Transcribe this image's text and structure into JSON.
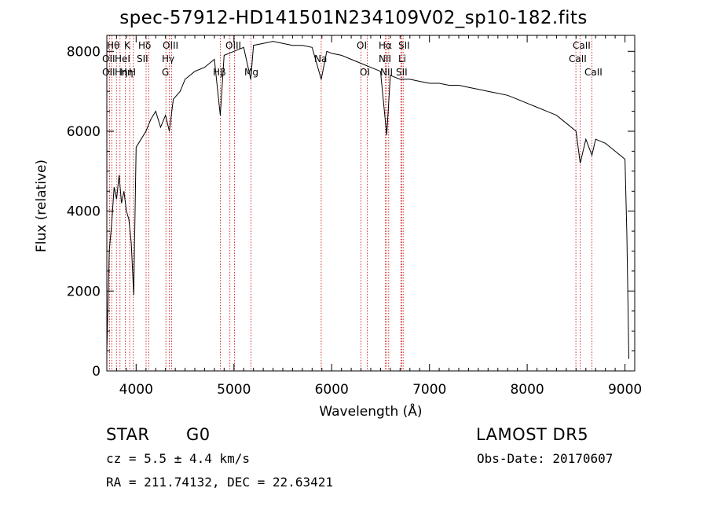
{
  "chart_data": {
    "type": "line",
    "title": "spec-57912-HD141501N234109V02_sp10-182.fits",
    "xlabel": "Wavelength (Å)",
    "ylabel": "Flux (relative)",
    "xlim": [
      3700,
      9100
    ],
    "ylim": [
      0,
      8400
    ],
    "xticks": [
      4000,
      5000,
      6000,
      7000,
      8000,
      9000
    ],
    "yticks": [
      0,
      2000,
      4000,
      6000,
      8000
    ],
    "series": [
      {
        "x": [
          3700,
          3725,
          3750,
          3775,
          3800,
          3825,
          3850,
          3875,
          3900,
          3925,
          3950,
          3975,
          4000,
          4050,
          4100,
          4150,
          4200,
          4250,
          4300,
          4340,
          4380,
          4450,
          4500,
          4600,
          4700,
          4800,
          4860,
          4900,
          5000,
          5100,
          5172,
          5200,
          5300,
          5400,
          5500,
          5600,
          5700,
          5800,
          5893,
          5950,
          6000,
          6100,
          6200,
          6300,
          6400,
          6500,
          6563,
          6600,
          6700,
          6800,
          6900,
          7000,
          7100,
          7200,
          7300,
          7400,
          7500,
          7600,
          7700,
          7800,
          7900,
          8000,
          8100,
          8200,
          8300,
          8400,
          8500,
          8542,
          8600,
          8662,
          8700,
          8800,
          8900,
          9000,
          9020,
          9040
        ],
        "y": [
          500,
          3000,
          3700,
          4600,
          4300,
          4900,
          4200,
          4500,
          4000,
          3800,
          3200,
          1900,
          5600,
          5800,
          6000,
          6300,
          6500,
          6100,
          6400,
          6000,
          6800,
          7000,
          7300,
          7500,
          7600,
          7800,
          6400,
          7900,
          8000,
          8100,
          7300,
          8150,
          8200,
          8250,
          8200,
          8150,
          8150,
          8100,
          7300,
          8000,
          7950,
          7900,
          7800,
          7700,
          7600,
          7500,
          5900,
          7400,
          7300,
          7300,
          7250,
          7200,
          7200,
          7150,
          7150,
          7100,
          7050,
          7000,
          6950,
          6900,
          6800,
          6700,
          6600,
          6500,
          6400,
          6200,
          6000,
          5200,
          5800,
          5400,
          5800,
          5700,
          5500,
          5300,
          3400,
          300
        ]
      }
    ],
    "lines": [
      {
        "x": 3727,
        "labels": [
          "OII"
        ]
      },
      {
        "x": 3750,
        "labels": [
          "Hθ"
        ]
      },
      {
        "x": 3798,
        "labels": [
          "Hθ"
        ]
      },
      {
        "x": 3835,
        "labels": [
          "Hη"
        ]
      },
      {
        "x": 3889,
        "labels": [
          "HeI"
        ]
      },
      {
        "x": 3934,
        "labels": [
          "K"
        ]
      },
      {
        "x": 3970,
        "labels": [
          "H"
        ]
      },
      {
        "x": 4102,
        "labels": [
          "Hδ"
        ]
      },
      {
        "x": 4128,
        "labels": [
          "SII"
        ]
      },
      {
        "x": 4304,
        "labels": [
          "G"
        ]
      },
      {
        "x": 4340,
        "labels": [
          "Hγ"
        ]
      },
      {
        "x": 4363,
        "labels": [
          "OIII"
        ]
      },
      {
        "x": 4861,
        "labels": [
          "Hβ"
        ]
      },
      {
        "x": 4959,
        "labels": [
          "OIII"
        ]
      },
      {
        "x": 5007,
        "labels": [
          "OIII"
        ]
      },
      {
        "x": 5175,
        "labels": [
          "Mg"
        ]
      },
      {
        "x": 5893,
        "labels": [
          "Na"
        ]
      },
      {
        "x": 6300,
        "labels": [
          "OI"
        ]
      },
      {
        "x": 6364,
        "labels": [
          "OI"
        ]
      },
      {
        "x": 6548,
        "labels": [
          "NII"
        ]
      },
      {
        "x": 6563,
        "labels": [
          "Hα"
        ]
      },
      {
        "x": 6583,
        "labels": [
          "NII"
        ]
      },
      {
        "x": 6708,
        "labels": [
          "Li"
        ]
      },
      {
        "x": 6716,
        "labels": [
          "SII"
        ]
      },
      {
        "x": 6731,
        "labels": [
          "SII"
        ]
      },
      {
        "x": 8498,
        "labels": [
          "CaII"
        ]
      },
      {
        "x": 8542,
        "labels": [
          "CaII"
        ]
      },
      {
        "x": 8662,
        "labels": [
          "CaII"
        ]
      }
    ]
  },
  "line_labels": [
    "Hθ",
    "OII",
    "OII",
    "Hη",
    "HeI",
    "K",
    "Hη",
    "H",
    "Hδ",
    "SII",
    "OIII",
    "Hγ",
    "G",
    "Hβ",
    "OIII",
    "Mg",
    "Na",
    "OI",
    "OI",
    "Hα",
    "SII",
    "NII",
    "Li",
    "NII",
    "SII",
    "CaII",
    "CaII",
    "CaII"
  ],
  "info": {
    "object_class": "STAR",
    "subclass": "G0",
    "survey": "LAMOST DR5",
    "cz": "cz = 5.5 ± 4.4 km/s",
    "obs_date": "Obs-Date: 20170607",
    "coords": "RA = 211.74132, DEC =  22.63421"
  },
  "colors": {
    "spectrum": "#000000",
    "marker_lines": "#cc0000",
    "background": "#ffffff"
  }
}
